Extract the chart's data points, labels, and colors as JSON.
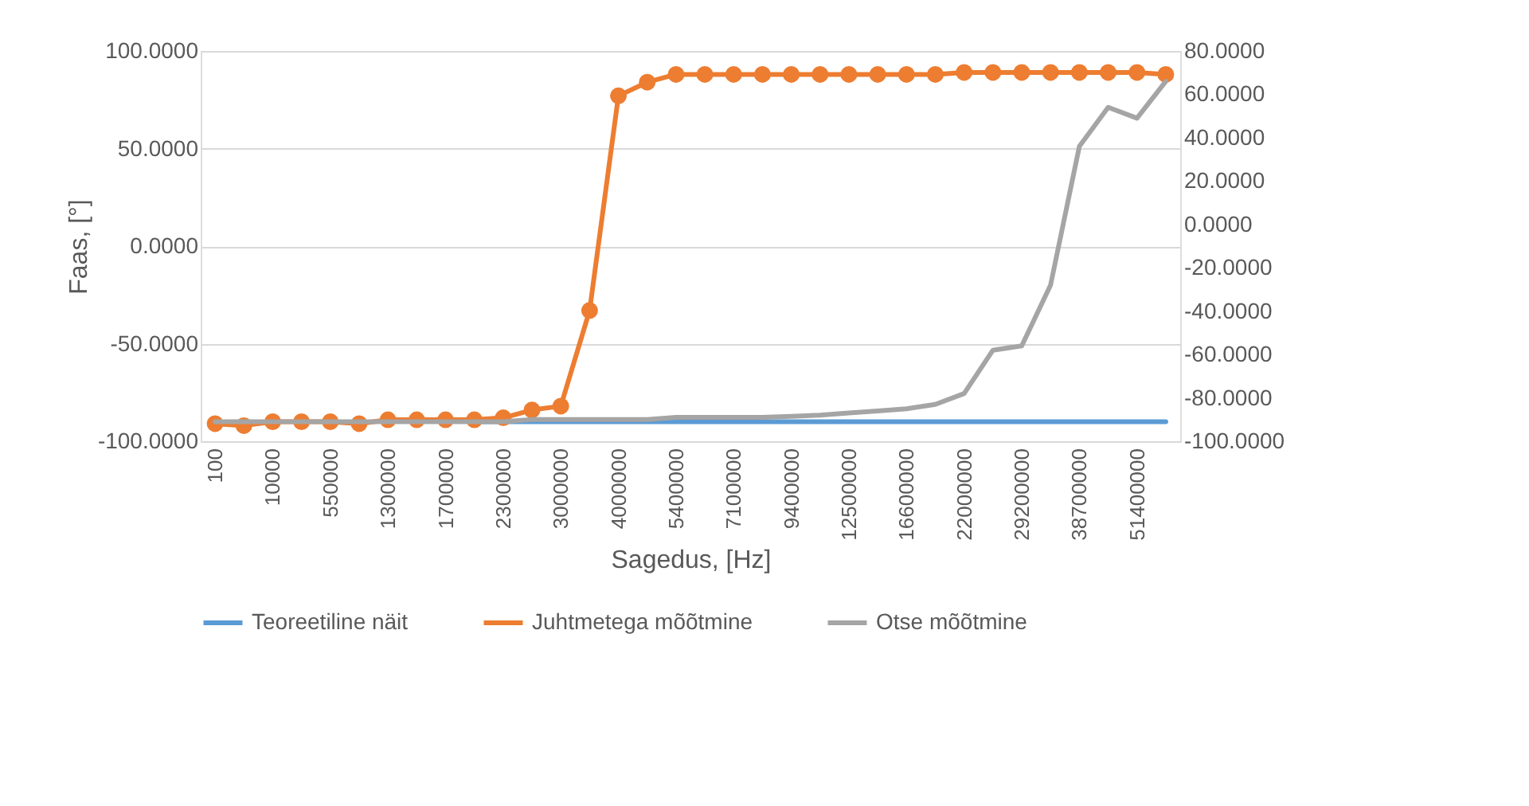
{
  "chart_data": {
    "type": "line",
    "xlabel": "Sagedus, [Hz]",
    "ylabel": "Faas, [°]",
    "categories": [
      "100",
      null,
      "10000",
      null,
      "550000",
      null,
      "1300000",
      null,
      "1700000",
      null,
      "2300000",
      null,
      "3000000",
      null,
      "4000000",
      null,
      "5400000",
      null,
      "7100000",
      null,
      "9400000",
      null,
      "12500000",
      null,
      "16600000",
      null,
      "22000000",
      null,
      "29200000",
      null,
      "38700000",
      null,
      "51400000",
      null
    ],
    "ylim": [
      -100,
      100
    ],
    "yticks": [
      {
        "value": -100,
        "label": "-100.0000"
      },
      {
        "value": -50,
        "label": "-50.0000"
      },
      {
        "value": 0,
        "label": "0.0000"
      },
      {
        "value": 50,
        "label": "50.0000"
      },
      {
        "value": 100,
        "label": "100.0000"
      }
    ],
    "y2lim": [
      -100,
      80
    ],
    "y2ticks": [
      {
        "value": -100,
        "label": "-100.0000"
      },
      {
        "value": -80,
        "label": "-80.0000"
      },
      {
        "value": -60,
        "label": "-60.0000"
      },
      {
        "value": -40,
        "label": "-40.0000"
      },
      {
        "value": -20,
        "label": "-20.0000"
      },
      {
        "value": 0,
        "label": "0.0000"
      },
      {
        "value": 20,
        "label": "20.0000"
      },
      {
        "value": 40,
        "label": "40.0000"
      },
      {
        "value": 60,
        "label": "60.0000"
      },
      {
        "value": 80,
        "label": "80.0000"
      }
    ],
    "series": [
      {
        "name": "Teoreetiline näit",
        "color": "#5b9bd5",
        "marker": "none",
        "values": [
          null,
          null,
          null,
          null,
          null,
          null,
          null,
          null,
          null,
          -90,
          -90,
          -90,
          -90,
          -90,
          -90,
          -90,
          -90,
          -90,
          -90,
          -90,
          -90,
          -90,
          -90,
          -90,
          -90,
          -90,
          -90,
          -90,
          -90,
          -90,
          -90,
          -90,
          -90,
          -90
        ]
      },
      {
        "name": "Juhtmetega mõõtmine",
        "color": "#ed7d31",
        "marker": "circle",
        "values": [
          -91,
          -92,
          -90,
          -90,
          -90,
          -91,
          -89,
          -89,
          -89,
          -89,
          -88,
          -84,
          -82,
          -33,
          77,
          84,
          88,
          88,
          88,
          88,
          88,
          88,
          88,
          88,
          88,
          88,
          89,
          89,
          89,
          89,
          89,
          89,
          89,
          88
        ]
      },
      {
        "name": "Otse mõõtmine",
        "color": "#a5a5a5",
        "marker": "none",
        "axis": "y2",
        "values": [
          -91,
          -91,
          -91,
          -91,
          -91,
          -91,
          -91,
          -91,
          -91,
          -91,
          -91,
          -90,
          -90,
          -90,
          -90,
          -90,
          -89,
          -89,
          -89,
          -89,
          -88.5,
          -88,
          -87,
          -86,
          -85,
          -83,
          -78,
          -58,
          -56,
          -28,
          36,
          54,
          49,
          66
        ]
      }
    ],
    "grid": "y",
    "legend": "bottom"
  }
}
